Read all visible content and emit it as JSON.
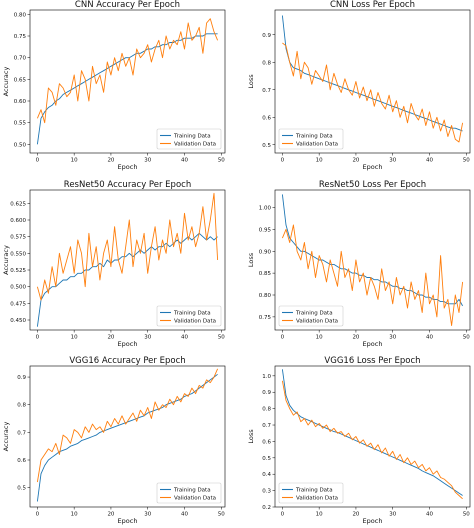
{
  "colors": {
    "training": "#1f77b4",
    "validation": "#ff7f0e"
  },
  "chart_data": [
    {
      "id": "cnn-acc",
      "type": "line",
      "title": "CNN Accuracy Per Epoch",
      "xlabel": "Epoch",
      "ylabel": "Accuracy",
      "xlim": [
        -2,
        51
      ],
      "ylim": [
        0.48,
        0.81
      ],
      "xticks": [
        0,
        10,
        20,
        30,
        40,
        50
      ],
      "yticks": [
        0.5,
        0.55,
        0.6,
        0.65,
        0.7,
        0.75,
        0.8
      ],
      "ytick_labels": [
        "0.50",
        "0.55",
        "0.60",
        "0.65",
        "0.70",
        "0.75",
        "0.80"
      ],
      "legend": "lower-right",
      "x": [
        0,
        1,
        2,
        3,
        4,
        5,
        6,
        7,
        8,
        9,
        10,
        11,
        12,
        13,
        14,
        15,
        16,
        17,
        18,
        19,
        20,
        21,
        22,
        23,
        24,
        25,
        26,
        27,
        28,
        29,
        30,
        31,
        32,
        33,
        34,
        35,
        36,
        37,
        38,
        39,
        40,
        41,
        42,
        43,
        44,
        45,
        46,
        47,
        48,
        49
      ],
      "series": [
        {
          "name": "Training Data",
          "values": [
            0.5,
            0.56,
            0.575,
            0.585,
            0.59,
            0.6,
            0.605,
            0.615,
            0.62,
            0.625,
            0.63,
            0.635,
            0.64,
            0.645,
            0.65,
            0.655,
            0.66,
            0.665,
            0.67,
            0.675,
            0.68,
            0.685,
            0.69,
            0.695,
            0.7,
            0.7,
            0.705,
            0.71,
            0.71,
            0.715,
            0.72,
            0.72,
            0.725,
            0.725,
            0.73,
            0.73,
            0.735,
            0.735,
            0.74,
            0.74,
            0.745,
            0.745,
            0.745,
            0.75,
            0.75,
            0.75,
            0.755,
            0.755,
            0.755,
            0.755
          ]
        },
        {
          "name": "Validation Data",
          "values": [
            0.56,
            0.58,
            0.55,
            0.63,
            0.62,
            0.59,
            0.64,
            0.63,
            0.61,
            0.62,
            0.66,
            0.6,
            0.67,
            0.65,
            0.6,
            0.68,
            0.64,
            0.66,
            0.62,
            0.69,
            0.66,
            0.7,
            0.67,
            0.71,
            0.68,
            0.7,
            0.66,
            0.72,
            0.7,
            0.71,
            0.73,
            0.69,
            0.72,
            0.74,
            0.7,
            0.75,
            0.72,
            0.74,
            0.73,
            0.76,
            0.72,
            0.78,
            0.74,
            0.75,
            0.77,
            0.71,
            0.78,
            0.79,
            0.76,
            0.74
          ]
        }
      ]
    },
    {
      "id": "cnn-loss",
      "type": "line",
      "title": "CNN Loss Per Epoch",
      "xlabel": "Epoch",
      "ylabel": "Loss",
      "xlim": [
        -2,
        51
      ],
      "ylim": [
        0.47,
        0.99
      ],
      "xticks": [
        0,
        10,
        20,
        30,
        40,
        50
      ],
      "yticks": [
        0.5,
        0.6,
        0.7,
        0.8,
        0.9
      ],
      "ytick_labels": [
        "0.5",
        "0.6",
        "0.7",
        "0.8",
        "0.9"
      ],
      "legend": "lower-left",
      "x": [
        0,
        1,
        2,
        3,
        4,
        5,
        6,
        7,
        8,
        9,
        10,
        11,
        12,
        13,
        14,
        15,
        16,
        17,
        18,
        19,
        20,
        21,
        22,
        23,
        24,
        25,
        26,
        27,
        28,
        29,
        30,
        31,
        32,
        33,
        34,
        35,
        36,
        37,
        38,
        39,
        40,
        41,
        42,
        43,
        44,
        45,
        46,
        47,
        48,
        49
      ],
      "series": [
        {
          "name": "Training Data",
          "values": [
            0.97,
            0.85,
            0.8,
            0.78,
            0.775,
            0.77,
            0.76,
            0.755,
            0.75,
            0.745,
            0.74,
            0.735,
            0.73,
            0.725,
            0.72,
            0.715,
            0.71,
            0.705,
            0.7,
            0.695,
            0.69,
            0.685,
            0.68,
            0.675,
            0.67,
            0.665,
            0.66,
            0.655,
            0.65,
            0.645,
            0.64,
            0.635,
            0.63,
            0.625,
            0.62,
            0.615,
            0.61,
            0.605,
            0.6,
            0.595,
            0.59,
            0.585,
            0.58,
            0.575,
            0.57,
            0.565,
            0.56,
            0.56,
            0.555,
            0.55
          ]
        },
        {
          "name": "Validation Data",
          "values": [
            0.87,
            0.86,
            0.8,
            0.75,
            0.84,
            0.74,
            0.8,
            0.78,
            0.72,
            0.77,
            0.75,
            0.73,
            0.79,
            0.7,
            0.76,
            0.72,
            0.69,
            0.74,
            0.7,
            0.68,
            0.73,
            0.67,
            0.71,
            0.66,
            0.7,
            0.64,
            0.69,
            0.65,
            0.63,
            0.68,
            0.62,
            0.66,
            0.6,
            0.64,
            0.58,
            0.65,
            0.61,
            0.59,
            0.63,
            0.57,
            0.62,
            0.56,
            0.6,
            0.55,
            0.59,
            0.53,
            0.57,
            0.52,
            0.51,
            0.58
          ]
        }
      ]
    },
    {
      "id": "resnet-acc",
      "type": "line",
      "title": "ResNet50 Accuracy Per Epoch",
      "xlabel": "Epoch",
      "ylabel": "Accuracy",
      "xlim": [
        -2,
        51
      ],
      "ylim": [
        0.435,
        0.645
      ],
      "xticks": [
        0,
        10,
        20,
        30,
        40,
        50
      ],
      "yticks": [
        0.45,
        0.475,
        0.5,
        0.525,
        0.55,
        0.575,
        0.6,
        0.625
      ],
      "ytick_labels": [
        "0.450",
        "0.475",
        "0.500",
        "0.525",
        "0.550",
        "0.575",
        "0.600",
        "0.625"
      ],
      "legend": "lower-right",
      "x": [
        0,
        1,
        2,
        3,
        4,
        5,
        6,
        7,
        8,
        9,
        10,
        11,
        12,
        13,
        14,
        15,
        16,
        17,
        18,
        19,
        20,
        21,
        22,
        23,
        24,
        25,
        26,
        27,
        28,
        29,
        30,
        31,
        32,
        33,
        34,
        35,
        36,
        37,
        38,
        39,
        40,
        41,
        42,
        43,
        44,
        45,
        46,
        47,
        48,
        49
      ],
      "series": [
        {
          "name": "Training Data",
          "values": [
            0.44,
            0.48,
            0.49,
            0.495,
            0.5,
            0.5,
            0.505,
            0.51,
            0.51,
            0.515,
            0.515,
            0.52,
            0.52,
            0.525,
            0.525,
            0.53,
            0.53,
            0.535,
            0.53,
            0.54,
            0.535,
            0.54,
            0.54,
            0.545,
            0.545,
            0.55,
            0.545,
            0.55,
            0.555,
            0.55,
            0.555,
            0.56,
            0.555,
            0.56,
            0.56,
            0.565,
            0.56,
            0.565,
            0.57,
            0.565,
            0.57,
            0.575,
            0.57,
            0.575,
            0.58,
            0.575,
            0.57,
            0.575,
            0.57,
            0.575
          ]
        },
        {
          "name": "Validation Data",
          "values": [
            0.5,
            0.48,
            0.51,
            0.49,
            0.53,
            0.5,
            0.55,
            0.52,
            0.54,
            0.56,
            0.52,
            0.57,
            0.55,
            0.5,
            0.58,
            0.53,
            0.56,
            0.51,
            0.55,
            0.57,
            0.53,
            0.59,
            0.54,
            0.52,
            0.56,
            0.6,
            0.53,
            0.57,
            0.55,
            0.58,
            0.52,
            0.56,
            0.59,
            0.54,
            0.57,
            0.55,
            0.6,
            0.56,
            0.58,
            0.55,
            0.61,
            0.57,
            0.59,
            0.56,
            0.58,
            0.62,
            0.57,
            0.6,
            0.64,
            0.54
          ]
        }
      ]
    },
    {
      "id": "resnet-loss",
      "type": "line",
      "title": "ResNet50 Loss Per Epoch",
      "xlabel": "Epoch",
      "ylabel": "Loss",
      "xlim": [
        -2,
        51
      ],
      "ylim": [
        0.72,
        1.04
      ],
      "xticks": [
        0,
        10,
        20,
        30,
        40,
        50
      ],
      "yticks": [
        0.75,
        0.8,
        0.85,
        0.9,
        0.95,
        1.0
      ],
      "ytick_labels": [
        "0.75",
        "0.80",
        "0.85",
        "0.90",
        "0.95",
        "1.00"
      ],
      "legend": "lower-left",
      "x": [
        0,
        1,
        2,
        3,
        4,
        5,
        6,
        7,
        8,
        9,
        10,
        11,
        12,
        13,
        14,
        15,
        16,
        17,
        18,
        19,
        20,
        21,
        22,
        23,
        24,
        25,
        26,
        27,
        28,
        29,
        30,
        31,
        32,
        33,
        34,
        35,
        36,
        37,
        38,
        39,
        40,
        41,
        42,
        43,
        44,
        45,
        46,
        47,
        48,
        49
      ],
      "series": [
        {
          "name": "Training Data",
          "values": [
            1.03,
            0.96,
            0.93,
            0.92,
            0.91,
            0.9,
            0.9,
            0.895,
            0.89,
            0.885,
            0.88,
            0.88,
            0.875,
            0.87,
            0.87,
            0.865,
            0.86,
            0.86,
            0.855,
            0.85,
            0.85,
            0.845,
            0.845,
            0.84,
            0.84,
            0.835,
            0.835,
            0.83,
            0.83,
            0.825,
            0.82,
            0.82,
            0.815,
            0.815,
            0.81,
            0.81,
            0.805,
            0.8,
            0.8,
            0.795,
            0.795,
            0.79,
            0.79,
            0.785,
            0.785,
            0.78,
            0.78,
            0.78,
            0.79,
            0.775
          ]
        },
        {
          "name": "Validation Data",
          "values": [
            0.93,
            0.95,
            0.92,
            0.96,
            0.9,
            0.88,
            0.92,
            0.86,
            0.9,
            0.84,
            0.89,
            0.87,
            0.83,
            0.88,
            0.85,
            0.82,
            0.9,
            0.84,
            0.86,
            0.81,
            0.88,
            0.83,
            0.85,
            0.8,
            0.84,
            0.82,
            0.79,
            0.86,
            0.81,
            0.83,
            0.78,
            0.84,
            0.8,
            0.82,
            0.77,
            0.83,
            0.79,
            0.81,
            0.76,
            0.85,
            0.78,
            0.8,
            0.75,
            0.89,
            0.77,
            0.79,
            0.73,
            0.8,
            0.76,
            0.83
          ]
        }
      ]
    },
    {
      "id": "vgg-acc",
      "type": "line",
      "title": "VGG16 Accuracy Per Epoch",
      "xlabel": "Epoch",
      "ylabel": "Accuracy",
      "xlim": [
        -2,
        51
      ],
      "ylim": [
        0.43,
        0.94
      ],
      "xticks": [
        0,
        10,
        20,
        30,
        40,
        50
      ],
      "yticks": [
        0.5,
        0.6,
        0.7,
        0.8,
        0.9
      ],
      "ytick_labels": [
        "0.5",
        "0.6",
        "0.7",
        "0.8",
        "0.9"
      ],
      "legend": "lower-right",
      "x": [
        0,
        1,
        2,
        3,
        4,
        5,
        6,
        7,
        8,
        9,
        10,
        11,
        12,
        13,
        14,
        15,
        16,
        17,
        18,
        19,
        20,
        21,
        22,
        23,
        24,
        25,
        26,
        27,
        28,
        29,
        30,
        31,
        32,
        33,
        34,
        35,
        36,
        37,
        38,
        39,
        40,
        41,
        42,
        43,
        44,
        45,
        46,
        47,
        48,
        49
      ],
      "series": [
        {
          "name": "Training Data",
          "values": [
            0.45,
            0.55,
            0.58,
            0.6,
            0.61,
            0.62,
            0.63,
            0.635,
            0.64,
            0.65,
            0.655,
            0.66,
            0.67,
            0.675,
            0.68,
            0.685,
            0.69,
            0.7,
            0.705,
            0.71,
            0.715,
            0.72,
            0.725,
            0.73,
            0.735,
            0.74,
            0.745,
            0.75,
            0.755,
            0.76,
            0.77,
            0.775,
            0.78,
            0.785,
            0.79,
            0.8,
            0.805,
            0.81,
            0.815,
            0.82,
            0.83,
            0.835,
            0.84,
            0.85,
            0.86,
            0.87,
            0.88,
            0.89,
            0.9,
            0.91
          ]
        },
        {
          "name": "Validation Data",
          "values": [
            0.52,
            0.6,
            0.62,
            0.64,
            0.63,
            0.66,
            0.62,
            0.69,
            0.68,
            0.66,
            0.71,
            0.7,
            0.68,
            0.72,
            0.7,
            0.73,
            0.71,
            0.72,
            0.7,
            0.74,
            0.72,
            0.75,
            0.73,
            0.76,
            0.73,
            0.75,
            0.77,
            0.74,
            0.78,
            0.76,
            0.79,
            0.75,
            0.81,
            0.78,
            0.8,
            0.79,
            0.82,
            0.8,
            0.83,
            0.81,
            0.84,
            0.83,
            0.86,
            0.84,
            0.87,
            0.86,
            0.89,
            0.88,
            0.9,
            0.93
          ]
        }
      ]
    },
    {
      "id": "vgg-loss",
      "type": "line",
      "title": "VGG16 Loss Per Epoch",
      "xlabel": "Epoch",
      "ylabel": "Loss",
      "xlim": [
        -2,
        51
      ],
      "ylim": [
        0.2,
        1.06
      ],
      "xticks": [
        0,
        10,
        20,
        30,
        40,
        50
      ],
      "yticks": [
        0.2,
        0.3,
        0.4,
        0.5,
        0.6,
        0.7,
        0.8,
        0.9,
        1.0
      ],
      "ytick_labels": [
        "0.2",
        "0.3",
        "0.4",
        "0.5",
        "0.6",
        "0.7",
        "0.8",
        "0.9",
        "1.0"
      ],
      "legend": "lower-left",
      "x": [
        0,
        1,
        2,
        3,
        4,
        5,
        6,
        7,
        8,
        9,
        10,
        11,
        12,
        13,
        14,
        15,
        16,
        17,
        18,
        19,
        20,
        21,
        22,
        23,
        24,
        25,
        26,
        27,
        28,
        29,
        30,
        31,
        32,
        33,
        34,
        35,
        36,
        37,
        38,
        39,
        40,
        41,
        42,
        43,
        44,
        45,
        46,
        47,
        48,
        49
      ],
      "series": [
        {
          "name": "Training Data",
          "values": [
            1.04,
            0.88,
            0.82,
            0.79,
            0.77,
            0.75,
            0.74,
            0.73,
            0.72,
            0.71,
            0.7,
            0.69,
            0.68,
            0.67,
            0.66,
            0.655,
            0.645,
            0.635,
            0.625,
            0.615,
            0.605,
            0.595,
            0.585,
            0.575,
            0.565,
            0.555,
            0.545,
            0.535,
            0.525,
            0.515,
            0.505,
            0.495,
            0.485,
            0.475,
            0.465,
            0.455,
            0.445,
            0.435,
            0.42,
            0.41,
            0.4,
            0.39,
            0.375,
            0.36,
            0.345,
            0.33,
            0.315,
            0.3,
            0.285,
            0.27
          ]
        },
        {
          "name": "Validation Data",
          "values": [
            0.97,
            0.85,
            0.8,
            0.76,
            0.78,
            0.72,
            0.74,
            0.7,
            0.73,
            0.69,
            0.71,
            0.68,
            0.7,
            0.66,
            0.68,
            0.65,
            0.66,
            0.63,
            0.65,
            0.61,
            0.63,
            0.59,
            0.61,
            0.57,
            0.59,
            0.55,
            0.58,
            0.53,
            0.56,
            0.51,
            0.54,
            0.49,
            0.52,
            0.47,
            0.5,
            0.46,
            0.48,
            0.44,
            0.46,
            0.42,
            0.44,
            0.4,
            0.42,
            0.38,
            0.37,
            0.35,
            0.33,
            0.29,
            0.27,
            0.25
          ]
        }
      ]
    }
  ]
}
